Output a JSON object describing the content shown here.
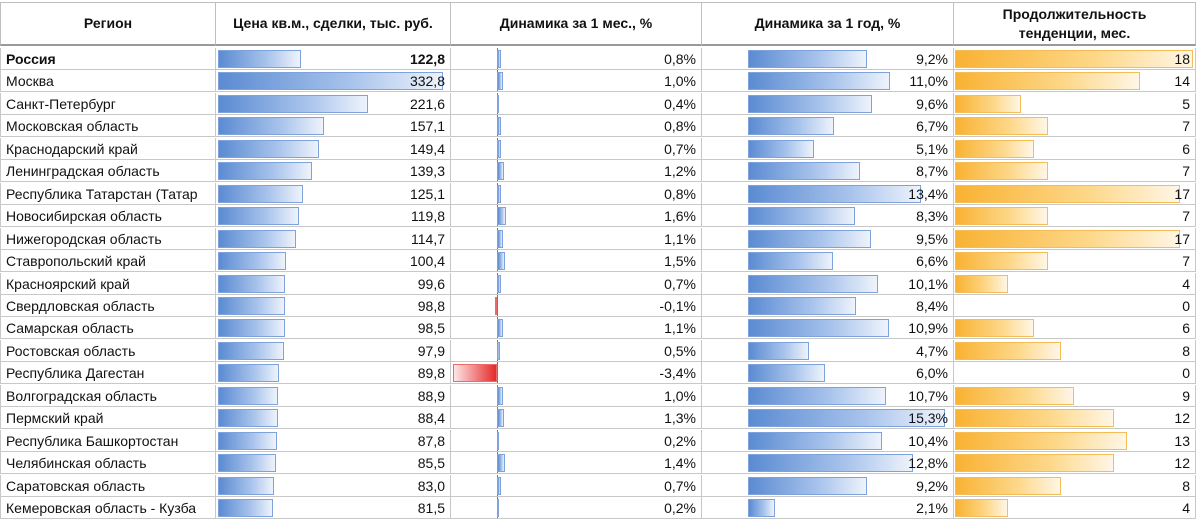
{
  "headers": {
    "region": "Регион",
    "price": "Цена кв.м., сделки, тыс. руб.",
    "month": "Динамика за 1 мес., %",
    "year": "Динамика за 1 год, %",
    "duration_line1": "Продолжительность",
    "duration_line2": "тенденции, мес."
  },
  "colors": {
    "positive_bar": "#5b8bd2",
    "negative_bar": "#e52a2a",
    "duration_bar": "#f9b233"
  },
  "rows": [
    {
      "region": "Россия",
      "price": 122.8,
      "price_text": "122,8",
      "month": 0.8,
      "month_text": "0,8%",
      "year": 9.2,
      "year_text": "9,2%",
      "dur": 18,
      "dur_text": "18",
      "bold": true
    },
    {
      "region": "Москва",
      "price": 332.8,
      "price_text": "332,8",
      "month": 1.0,
      "month_text": "1,0%",
      "year": 11.0,
      "year_text": "11,0%",
      "dur": 14,
      "dur_text": "14"
    },
    {
      "region": "Санкт-Петербург",
      "price": 221.6,
      "price_text": "221,6",
      "month": 0.4,
      "month_text": "0,4%",
      "year": 9.6,
      "year_text": "9,6%",
      "dur": 5,
      "dur_text": "5"
    },
    {
      "region": "Московская область",
      "price": 157.1,
      "price_text": "157,1",
      "month": 0.8,
      "month_text": "0,8%",
      "year": 6.7,
      "year_text": "6,7%",
      "dur": 7,
      "dur_text": "7"
    },
    {
      "region": "Краснодарский край",
      "price": 149.4,
      "price_text": "149,4",
      "month": 0.7,
      "month_text": "0,7%",
      "year": 5.1,
      "year_text": "5,1%",
      "dur": 6,
      "dur_text": "6"
    },
    {
      "region": "Ленинградская область",
      "price": 139.3,
      "price_text": "139,3",
      "month": 1.2,
      "month_text": "1,2%",
      "year": 8.7,
      "year_text": "8,7%",
      "dur": 7,
      "dur_text": "7"
    },
    {
      "region": "Республика Татарстан (Татар",
      "price": 125.1,
      "price_text": "125,1",
      "month": 0.8,
      "month_text": "0,8%",
      "year": 13.4,
      "year_text": "13,4%",
      "dur": 17,
      "dur_text": "17"
    },
    {
      "region": "Новосибирская область",
      "price": 119.8,
      "price_text": "119,8",
      "month": 1.6,
      "month_text": "1,6%",
      "year": 8.3,
      "year_text": "8,3%",
      "dur": 7,
      "dur_text": "7"
    },
    {
      "region": "Нижегородская область",
      "price": 114.7,
      "price_text": "114,7",
      "month": 1.1,
      "month_text": "1,1%",
      "year": 9.5,
      "year_text": "9,5%",
      "dur": 17,
      "dur_text": "17"
    },
    {
      "region": "Ставропольский край",
      "price": 100.4,
      "price_text": "100,4",
      "month": 1.5,
      "month_text": "1,5%",
      "year": 6.6,
      "year_text": "6,6%",
      "dur": 7,
      "dur_text": "7"
    },
    {
      "region": "Красноярский край",
      "price": 99.6,
      "price_text": "99,6",
      "month": 0.7,
      "month_text": "0,7%",
      "year": 10.1,
      "year_text": "10,1%",
      "dur": 4,
      "dur_text": "4"
    },
    {
      "region": "Свердловская область",
      "price": 98.8,
      "price_text": "98,8",
      "month": -0.1,
      "month_text": "-0,1%",
      "year": 8.4,
      "year_text": "8,4%",
      "dur": 0,
      "dur_text": "0"
    },
    {
      "region": "Самарская область",
      "price": 98.5,
      "price_text": "98,5",
      "month": 1.1,
      "month_text": "1,1%",
      "year": 10.9,
      "year_text": "10,9%",
      "dur": 6,
      "dur_text": "6"
    },
    {
      "region": "Ростовская область",
      "price": 97.9,
      "price_text": "97,9",
      "month": 0.5,
      "month_text": "0,5%",
      "year": 4.7,
      "year_text": "4,7%",
      "dur": 8,
      "dur_text": "8"
    },
    {
      "region": "Республика Дагестан",
      "price": 89.8,
      "price_text": "89,8",
      "month": -3.4,
      "month_text": "-3,4%",
      "year": 6.0,
      "year_text": "6,0%",
      "dur": 0,
      "dur_text": "0"
    },
    {
      "region": "Волгоградская область",
      "price": 88.9,
      "price_text": "88,9",
      "month": 1.0,
      "month_text": "1,0%",
      "year": 10.7,
      "year_text": "10,7%",
      "dur": 9,
      "dur_text": "9"
    },
    {
      "region": "Пермский край",
      "price": 88.4,
      "price_text": "88,4",
      "month": 1.3,
      "month_text": "1,3%",
      "year": 15.3,
      "year_text": "15,3%",
      "dur": 12,
      "dur_text": "12"
    },
    {
      "region": "Республика Башкортостан",
      "price": 87.8,
      "price_text": "87,8",
      "month": 0.2,
      "month_text": "0,2%",
      "year": 10.4,
      "year_text": "10,4%",
      "dur": 13,
      "dur_text": "13"
    },
    {
      "region": "Челябинская область",
      "price": 85.5,
      "price_text": "85,5",
      "month": 1.4,
      "month_text": "1,4%",
      "year": 12.8,
      "year_text": "12,8%",
      "dur": 12,
      "dur_text": "12"
    },
    {
      "region": "Саратовская область",
      "price": 83.0,
      "price_text": "83,0",
      "month": 0.7,
      "month_text": "0,7%",
      "year": 9.2,
      "year_text": "9,2%",
      "dur": 8,
      "dur_text": "8"
    },
    {
      "region": "Кемеровская область - Кузба",
      "price": 81.5,
      "price_text": "81,5",
      "month": 0.2,
      "month_text": "0,2%",
      "year": 2.1,
      "year_text": "2,1%",
      "dur": 4,
      "dur_text": "4"
    }
  ]
}
